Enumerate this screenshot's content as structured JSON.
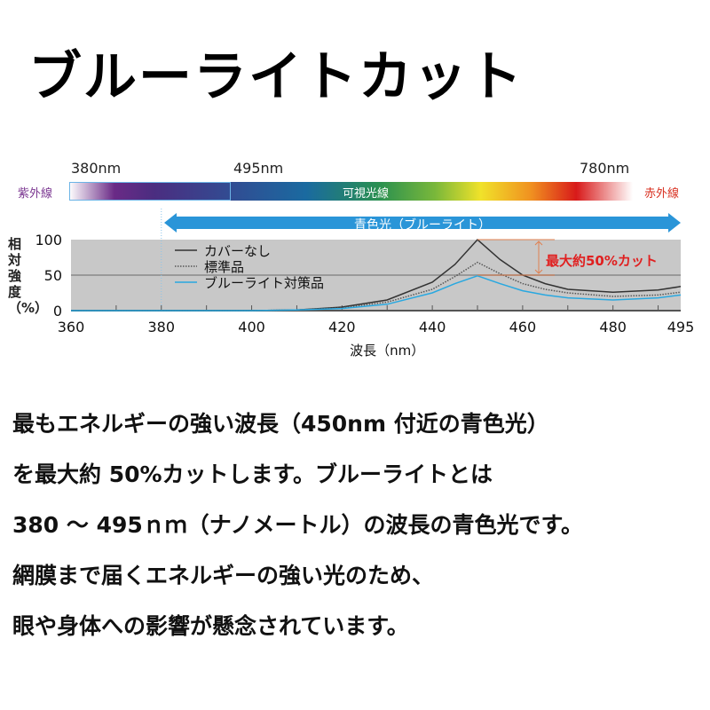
{
  "title": "ブルーライトカット",
  "spectrum": {
    "nm_labels": [
      "380nm",
      "495nm",
      "780nm"
    ],
    "uv": "紫外線",
    "visible": "可視光線",
    "ir": "赤外線",
    "uv_color": "#7a3590",
    "ir_color": "#d83020"
  },
  "blue_light_label": "青色光（ブルーライト）",
  "chart_data": {
    "type": "line",
    "xlabel": "波長（nm）",
    "ylabel": "相対強度（%）",
    "xlim": [
      360,
      495
    ],
    "ylim": [
      0,
      100
    ],
    "xticks": [
      360,
      380,
      400,
      420,
      440,
      460,
      480,
      495
    ],
    "yticks": [
      0,
      50,
      100
    ],
    "legend_position": "top-left",
    "annotation": "最大約50%カット",
    "series": [
      {
        "name": "カバーなし",
        "color": "#333333",
        "style": "solid",
        "x": [
          360,
          400,
          410,
          420,
          430,
          440,
          445,
          450,
          455,
          460,
          465,
          470,
          480,
          490,
          495
        ],
        "y": [
          0,
          0,
          1,
          5,
          15,
          40,
          65,
          100,
          72,
          50,
          38,
          30,
          26,
          29,
          34
        ]
      },
      {
        "name": "標準品",
        "color": "#555555",
        "style": "dotted",
        "x": [
          360,
          400,
          410,
          420,
          430,
          440,
          445,
          450,
          455,
          460,
          465,
          470,
          480,
          490,
          495
        ],
        "y": [
          0,
          0,
          1,
          4,
          12,
          30,
          48,
          68,
          52,
          38,
          30,
          25,
          20,
          22,
          26
        ]
      },
      {
        "name": "ブルーライト対策品",
        "color": "#29a8e0",
        "style": "solid",
        "x": [
          360,
          400,
          410,
          420,
          430,
          440,
          445,
          450,
          455,
          460,
          465,
          470,
          480,
          490,
          495
        ],
        "y": [
          0,
          0,
          1,
          3,
          9,
          25,
          38,
          49,
          38,
          28,
          22,
          18,
          15,
          18,
          22
        ]
      }
    ]
  },
  "body_lines": [
    "最もエネルギーの強い波長（450nm 付近の青色光）",
    "を最大約 50%カットします。ブルーライトとは",
    "380 〜 495ｎｍ（ナノメートル）の波長の青色光です。",
    "網膜まで届くエネルギーの強い光のため、",
    "眼や身体への影響が懸念されています。"
  ]
}
